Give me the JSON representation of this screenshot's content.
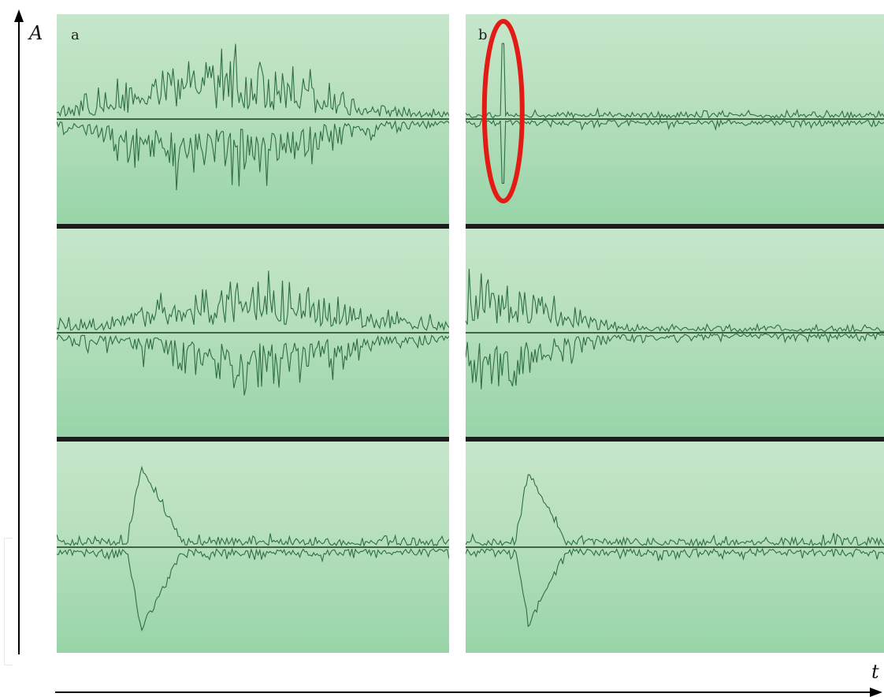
{
  "figure": {
    "y_axis_label": "A",
    "x_axis_label": "t",
    "column_labels": [
      "a",
      "b"
    ]
  },
  "colors": {
    "panel_top": "#c6e6cb",
    "panel_bottom": "#98d4a8",
    "trace": "#2f6e44",
    "baseline": "#1b3a22",
    "divider": "#1c1c1c",
    "highlight_ellipse": "#e21b14",
    "axis": "#000000"
  },
  "chart_data": {
    "type": "line",
    "title": "",
    "xlabel": "t",
    "ylabel": "A",
    "grid": false,
    "legend": "none",
    "x_range": [
      0,
      1
    ],
    "y_range": [
      -1,
      1
    ],
    "panels": [
      {
        "column": "a",
        "row": 1,
        "signal": "noise-burst",
        "burst_center": 0.42,
        "burst_width": 0.28,
        "max_amplitude": 0.38,
        "baseline_noise": 0.06,
        "spikes": []
      },
      {
        "column": "a",
        "row": 2,
        "signal": "noise-burst",
        "burst_center": 0.5,
        "burst_width": 0.3,
        "max_amplitude": 0.3,
        "baseline_noise": 0.06,
        "spikes": [
          {
            "t": 0.64,
            "amplitude": 0.42
          }
        ]
      },
      {
        "column": "a",
        "row": 3,
        "signal": "pulse",
        "pulse_start": 0.18,
        "pulse_peak_t": 0.215,
        "pulse_end": 0.32,
        "pulse_amplitude": 0.8,
        "baseline_noise": 0.07,
        "spikes": []
      },
      {
        "column": "b",
        "row": 1,
        "signal": "spike",
        "baseline_noise": 0.05,
        "spikes": [
          {
            "t": 0.09,
            "amplitude": 0.8
          }
        ],
        "highlighted": true,
        "highlight_t": 0.09
      },
      {
        "column": "b",
        "row": 2,
        "signal": "decay",
        "burst_center": 0.08,
        "burst_width": 0.18,
        "max_amplitude": 0.33,
        "baseline_noise": 0.05,
        "spikes": [
          {
            "t": 0.065,
            "amplitude": 0.42
          }
        ]
      },
      {
        "column": "b",
        "row": 3,
        "signal": "pulse",
        "pulse_start": 0.12,
        "pulse_peak_t": 0.15,
        "pulse_end": 0.24,
        "pulse_amplitude": 0.75,
        "baseline_noise": 0.07,
        "spikes": []
      }
    ]
  }
}
